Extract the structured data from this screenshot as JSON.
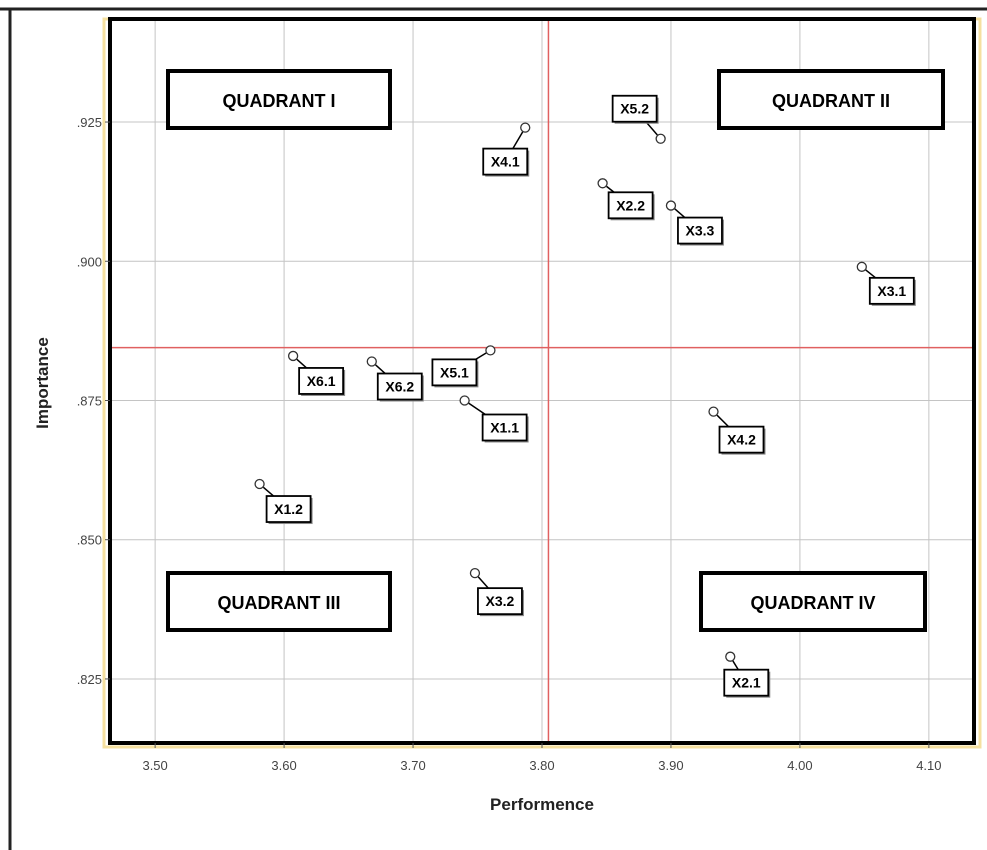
{
  "chart_data": {
    "type": "scatter",
    "xlabel": "Performence",
    "ylabel": "Importance",
    "xlim": [
      3.465,
      4.135
    ],
    "ylim": [
      0.8135,
      0.9435
    ],
    "x_ticks": [
      3.5,
      3.6,
      3.7,
      3.8,
      3.9,
      4.0,
      4.1
    ],
    "x_tick_labels": [
      "3.50",
      "3.60",
      "3.70",
      "3.80",
      "3.90",
      "4.00",
      "4.10"
    ],
    "y_ticks": [
      0.825,
      0.85,
      0.875,
      0.9,
      0.925
    ],
    "y_tick_labels": [
      ".825",
      ".850",
      ".875",
      ".900",
      ".925"
    ],
    "grid": true,
    "reference_lines": {
      "x": 3.805,
      "y": 0.8845,
      "color": "#e06060"
    },
    "quadrant_labels": [
      {
        "text": "QUADRANT I",
        "position": "top-left"
      },
      {
        "text": "QUADRANT II",
        "position": "top-right"
      },
      {
        "text": "QUADRANT III",
        "position": "bottom-left"
      },
      {
        "text": "QUADRANT IV",
        "position": "bottom-right"
      }
    ],
    "points": [
      {
        "label": "X4.1",
        "x": 3.787,
        "y": 0.924
      },
      {
        "label": "X5.2",
        "x": 3.892,
        "y": 0.922
      },
      {
        "label": "X2.2",
        "x": 3.847,
        "y": 0.914
      },
      {
        "label": "X3.3",
        "x": 3.9,
        "y": 0.91
      },
      {
        "label": "X3.1",
        "x": 4.048,
        "y": 0.899
      },
      {
        "label": "X6.1",
        "x": 3.607,
        "y": 0.883
      },
      {
        "label": "X6.2",
        "x": 3.668,
        "y": 0.882
      },
      {
        "label": "X5.1",
        "x": 3.76,
        "y": 0.884
      },
      {
        "label": "X1.1",
        "x": 3.74,
        "y": 0.875
      },
      {
        "label": "X4.2",
        "x": 3.933,
        "y": 0.873
      },
      {
        "label": "X1.2",
        "x": 3.581,
        "y": 0.86
      },
      {
        "label": "X3.2",
        "x": 3.748,
        "y": 0.844
      },
      {
        "label": "X2.1",
        "x": 3.946,
        "y": 0.829
      }
    ]
  }
}
